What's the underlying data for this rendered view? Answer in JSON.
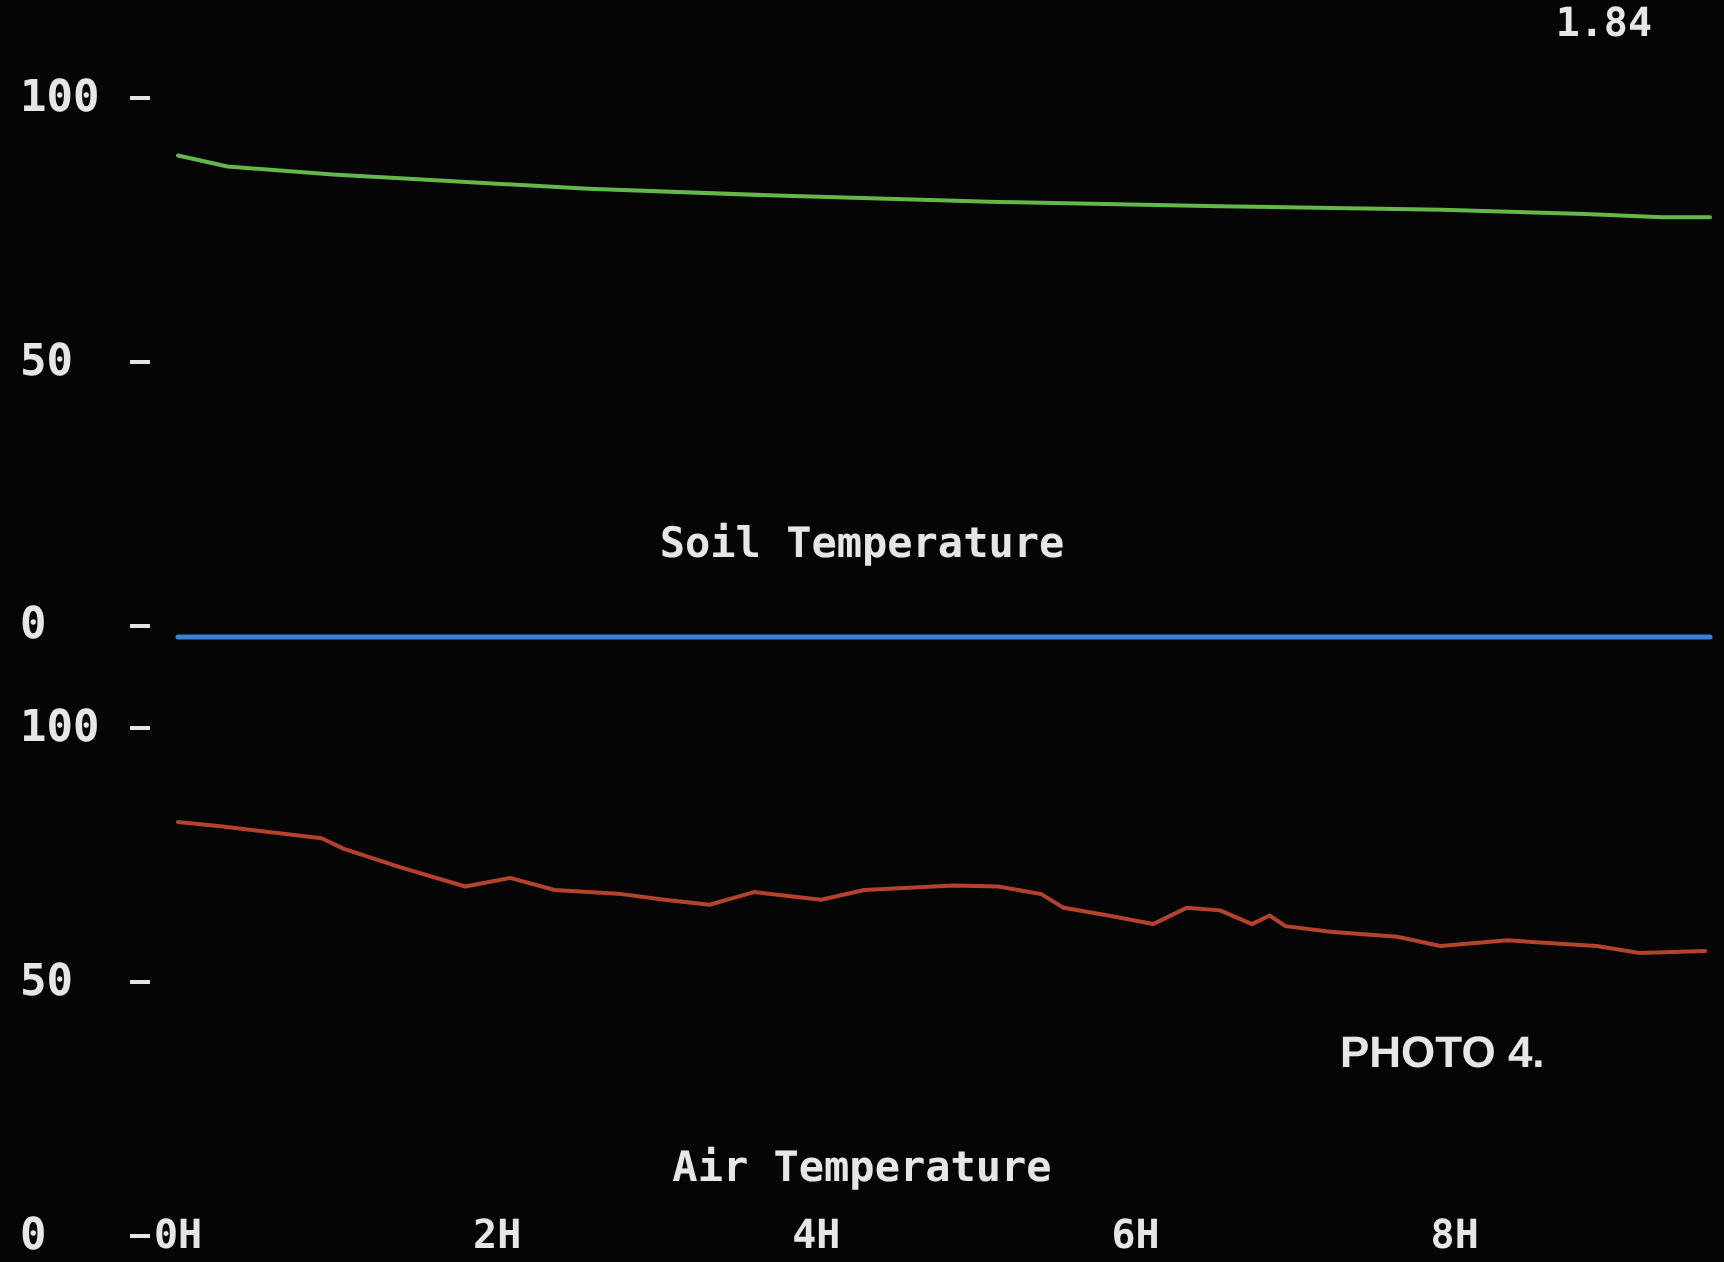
{
  "chart_data": [
    {
      "type": "line",
      "title": "Soil Temperature",
      "annotations": [
        "1.84"
      ],
      "xlim": [
        0,
        9.6
      ],
      "ylim": [
        -2,
        100
      ],
      "yticks": [
        0,
        50,
        100
      ],
      "tick_labels": "y",
      "series": [
        {
          "color": "#64b84a",
          "x": [
            0,
            0.31,
            0.97,
            1.67,
            2.57,
            3.75,
            5.14,
            6.53,
            7.92,
            8.82,
            9.3,
            9.6
          ],
          "values": [
            89.1,
            87.0,
            85.5,
            84.3,
            82.8,
            81.5,
            80.3,
            79.5,
            78.8,
            78.0,
            77.4,
            77.4
          ]
        }
      ]
    },
    {
      "type": "line",
      "title": "Air Temperature",
      "annotations": [
        "PHOTO 4."
      ],
      "xlim": [
        0,
        9.6
      ],
      "xticks": [
        {
          "value": 0,
          "label": "0H"
        },
        {
          "value": 2,
          "label": "2H"
        },
        {
          "value": 4,
          "label": "4H"
        },
        {
          "value": 6,
          "label": "6H"
        },
        {
          "value": 8,
          "label": "8H"
        }
      ],
      "ylim": [
        0,
        100
      ],
      "yticks": [
        0,
        50,
        100
      ],
      "series": [
        {
          "color": "#b5432c",
          "x": [
            0,
            0.28,
            0.9,
            1.04,
            1.39,
            1.8,
            2.08,
            2.36,
            2.78,
            3.05,
            3.33,
            3.61,
            4.03,
            4.3,
            4.86,
            5.14,
            5.41,
            5.55,
            5.83,
            6.11,
            6.32,
            6.53,
            6.73,
            6.84,
            6.94,
            7.22,
            7.64,
            7.91,
            8.33,
            8.89,
            9.16,
            9.57
          ],
          "values": [
            81.5,
            80.6,
            78.3,
            76.2,
            72.6,
            68.8,
            70.5,
            68.1,
            67.3,
            66.2,
            65.2,
            67.7,
            66.2,
            68.1,
            69.0,
            68.8,
            67.3,
            64.6,
            63.1,
            61.4,
            64.6,
            64.1,
            61.4,
            63.1,
            61.0,
            59.9,
            58.9,
            57.1,
            58.2,
            57.1,
            55.7,
            56.1
          ]
        }
      ]
    }
  ]
}
